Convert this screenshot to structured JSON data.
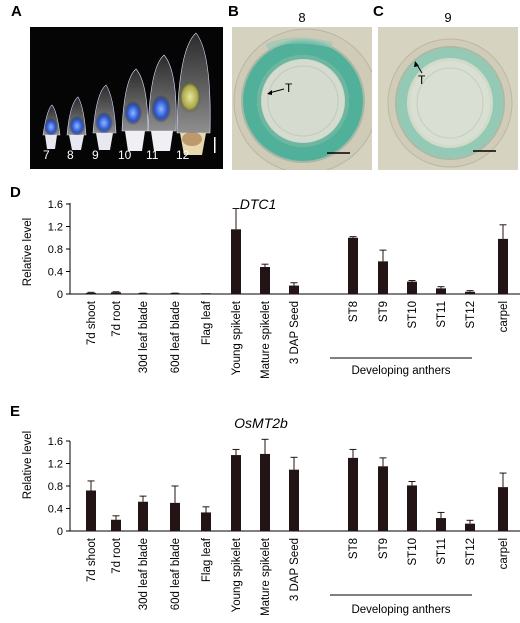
{
  "panels": {
    "A": {
      "letter": "A",
      "stage_labels": [
        "7",
        "8",
        "9",
        "10",
        "11",
        "12"
      ]
    },
    "B": {
      "letter": "B",
      "title": "8",
      "marker": "T"
    },
    "C": {
      "letter": "C",
      "title": "9",
      "marker": "T"
    },
    "D": {
      "letter": "D"
    },
    "E": {
      "letter": "E"
    }
  },
  "chart_data": [
    {
      "type": "bar",
      "title": "DTC1",
      "ylabel": "Relative level",
      "ylim": [
        0,
        1.6
      ],
      "yticks": [
        "0",
        "0.4",
        "0.8",
        "1.2",
        "1.6"
      ],
      "categories": [
        "7d shoot",
        "7d root",
        "30d leaf blade",
        "60d leaf blade",
        "Flag leaf",
        "Young spikelet",
        "Mature spikelet",
        "3 DAP Seed",
        "ST8",
        "ST9",
        "ST10",
        "ST11",
        "ST12",
        "carpel"
      ],
      "values": [
        0.02,
        0.03,
        0.01,
        0.01,
        0.0,
        1.15,
        0.48,
        0.15,
        1.0,
        0.58,
        0.22,
        0.1,
        0.04,
        0.98
      ],
      "errors": [
        0.01,
        0.01,
        0.005,
        0.005,
        0.0,
        0.37,
        0.05,
        0.05,
        0.02,
        0.2,
        0.02,
        0.03,
        0.02,
        0.25
      ],
      "group_label": "Developing anthers"
    },
    {
      "type": "bar",
      "title": "OsMT2b",
      "ylabel": "Relative level",
      "ylim": [
        0,
        1.6
      ],
      "yticks": [
        "0",
        "0.4",
        "0.8",
        "1.2",
        "1.6"
      ],
      "categories": [
        "7d shoot",
        "7d root",
        "30d leaf blade",
        "60d leaf blade",
        "Flag leaf",
        "Young spikelet",
        "Mature spikelet",
        "3 DAP Seed",
        "ST8",
        "ST9",
        "ST10",
        "ST11",
        "ST12",
        "carpel"
      ],
      "values": [
        0.72,
        0.2,
        0.52,
        0.5,
        0.33,
        1.35,
        1.37,
        1.09,
        1.3,
        1.15,
        0.81,
        0.23,
        0.13,
        0.78
      ],
      "errors": [
        0.17,
        0.07,
        0.1,
        0.3,
        0.1,
        0.1,
        0.26,
        0.22,
        0.15,
        0.15,
        0.07,
        0.1,
        0.06,
        0.25
      ],
      "group_label": "Developing anthers"
    }
  ]
}
